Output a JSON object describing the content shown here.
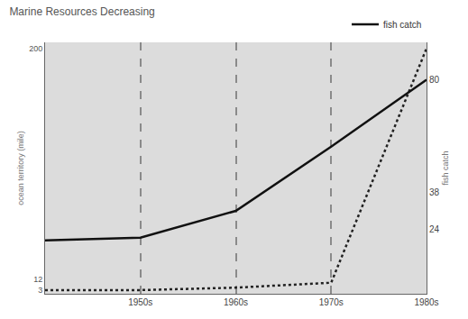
{
  "chart_data": {
    "type": "line",
    "title": "Marine Resources Decreasing",
    "categories": [
      null,
      "1950s",
      "1960s",
      "1970s",
      "1980s"
    ],
    "ylabel": "ocean territory (mile)",
    "y2label": "fish catch",
    "series": [
      {
        "name": "fish catch",
        "color": "#111111",
        "line_style": "solid",
        "axis": "y2",
        "values": [
          20,
          21,
          31,
          55,
          80
        ]
      },
      {
        "color": "#222222",
        "line_style": "dot",
        "values": [
          3,
          3,
          5,
          9,
          200
        ]
      }
    ],
    "ylim": [
      0,
      205
    ],
    "yticks": [
      3,
      12,
      200
    ],
    "y2lim": [
      0,
      94
    ],
    "y2ticks": [
      24,
      38,
      80
    ],
    "grid": true,
    "legend": "top right"
  }
}
